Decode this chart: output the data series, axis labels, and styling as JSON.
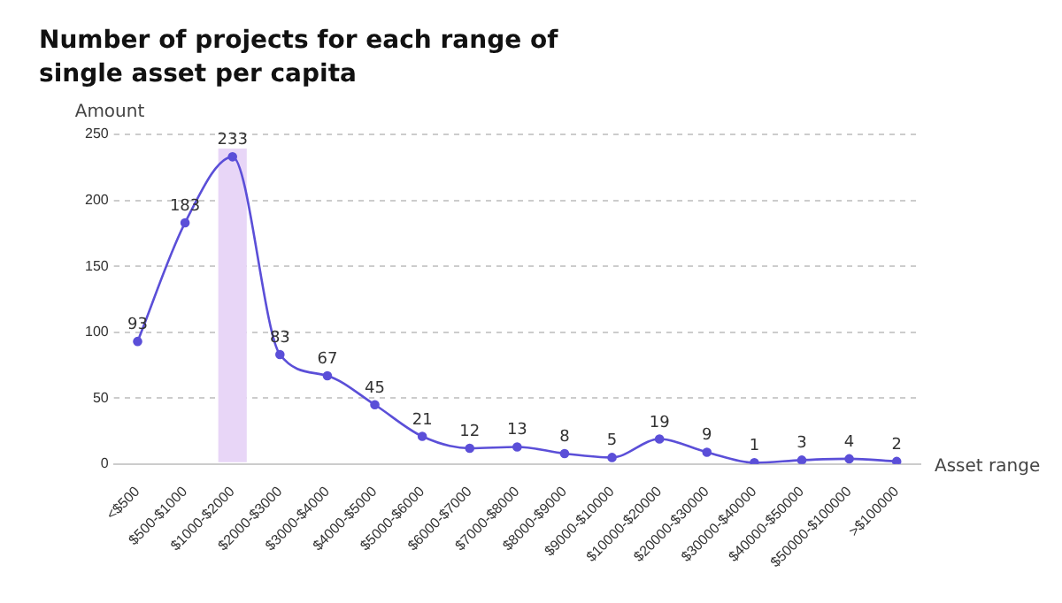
{
  "chart_data": {
    "type": "line",
    "title": "Number of projects for each range of single asset per capita",
    "xlabel": "Asset range",
    "ylabel": "Amount",
    "categories": [
      "<$500",
      "$500-$1000",
      "$1000-$2000",
      "$2000-$3000",
      "$3000-$4000",
      "$4000-$5000",
      "$5000-$6000",
      "$6000-$7000",
      "$7000-$8000",
      "$8000-$9000",
      "$9000-$10000",
      "$10000-$20000",
      "$20000-$30000",
      "$30000-$40000",
      "$40000-$50000",
      "$50000-$100000",
      ">$100000"
    ],
    "series": [
      {
        "color": "#5b4fd8",
        "values": [
          93,
          183,
          233,
          83,
          67,
          45,
          21,
          12,
          13,
          8,
          5,
          19,
          9,
          1,
          3,
          4,
          2
        ]
      }
    ],
    "ylim": [
      0,
      250
    ],
    "yticks": [
      0,
      50,
      100,
      150,
      200,
      250
    ],
    "grid": "y",
    "marker": "circle",
    "line_style": "solid",
    "data_labels": true,
    "legend": false,
    "bands": [
      {
        "axis": "x",
        "from": "$1000-$2000",
        "to": "$1000-$2000",
        "color": "#e8d6f7"
      }
    ]
  }
}
